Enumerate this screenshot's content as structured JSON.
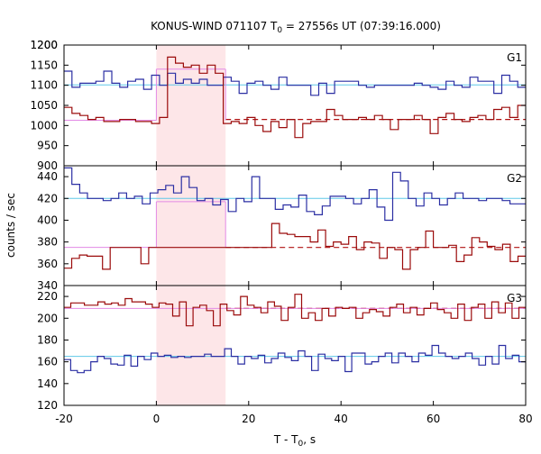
{
  "chart_data": {
    "type": "line",
    "title_main": "KONUS-WIND 071107 T",
    "title_sub": "0",
    "title_rest": " = 27556s UT (07:39:16.000)",
    "xlabel_main": "T - T",
    "xlabel_sub": "0",
    "xlabel_rest": ", s",
    "ylabel": "counts / sec",
    "xlim": [
      -20,
      80
    ],
    "xticks": [
      "-20",
      "0",
      "20",
      "40",
      "60",
      "80"
    ],
    "highlight_interval": [
      0,
      15
    ],
    "panels": [
      {
        "name": "G1",
        "ylim": [
          900,
          1200
        ],
        "yticks": [
          "900",
          "950",
          "1000",
          "1050",
          "1100",
          "1150",
          "1200"
        ],
        "bg_levels": [
          {
            "series": "blue",
            "value": 1101
          },
          {
            "series": "red",
            "value": 1015
          }
        ],
        "pulse_level": {
          "value": 1140,
          "from": 0,
          "to": 15
        },
        "pulse_base": {
          "value": 1013,
          "from": -20,
          "to": 0
        },
        "series": [
          {
            "color": "blue",
            "values": [
              1135,
              1095,
              1105,
              1105,
              1110,
              1135,
              1105,
              1095,
              1110,
              1115,
              1090,
              1125,
              1100,
              1130,
              1105,
              1115,
              1105,
              1115,
              1100,
              1100,
              1120,
              1110,
              1080,
              1105,
              1110,
              1100,
              1090,
              1120,
              1100,
              1100,
              1100,
              1075,
              1105,
              1080,
              1110,
              1110,
              1110,
              1100,
              1095,
              1100,
              1100,
              1100,
              1100,
              1100,
              1105,
              1100,
              1095,
              1090,
              1110,
              1100,
              1095,
              1120,
              1110,
              1110,
              1080,
              1125,
              1110,
              1095
            ]
          },
          {
            "color": "red",
            "values": [
              1045,
              1030,
              1025,
              1015,
              1020,
              1010,
              1010,
              1015,
              1015,
              1010,
              1010,
              1005,
              1020,
              1170,
              1155,
              1145,
              1150,
              1130,
              1150,
              1130,
              1005,
              1010,
              1005,
              1020,
              1000,
              985,
              1010,
              995,
              1015,
              970,
              1005,
              1010,
              1010,
              1040,
              1025,
              1015,
              1015,
              1020,
              1015,
              1025,
              1015,
              990,
              1015,
              1015,
              1025,
              1015,
              980,
              1020,
              1030,
              1015,
              1010,
              1020,
              1025,
              1015,
              1040,
              1045,
              1020,
              1050
            ]
          }
        ]
      },
      {
        "name": "G2",
        "ylim": [
          340,
          450
        ],
        "yticks": [
          "340",
          "360",
          "380",
          "400",
          "420",
          "440"
        ],
        "bg_levels": [
          {
            "series": "blue",
            "value": 420
          },
          {
            "series": "red",
            "value": 375
          }
        ],
        "pulse_level": {
          "value": 417,
          "from": 0,
          "to": 15
        },
        "pulse_base": {
          "value": 375,
          "from": -20,
          "to": 0
        },
        "series": [
          {
            "color": "blue",
            "values": [
              448,
              433,
              425,
              420,
              420,
              418,
              420,
              425,
              420,
              422,
              415,
              425,
              428,
              432,
              425,
              440,
              430,
              418,
              420,
              414,
              419,
              408,
              420,
              417,
              440,
              420,
              420,
              410,
              414,
              412,
              423,
              408,
              405,
              413,
              422,
              422,
              420,
              415,
              420,
              428,
              412,
              400,
              444,
              436,
              420,
              413,
              425,
              420,
              414,
              420,
              425,
              420,
              420,
              418,
              420,
              420,
              418,
              415,
              415
            ]
          },
          {
            "color": "red",
            "values": [
              356,
              365,
              368,
              367,
              367,
              355,
              375,
              375,
              375,
              375,
              360,
              375,
              375,
              375,
              375,
              375,
              375,
              375,
              375,
              375,
              375,
              375,
              375,
              375,
              375,
              375,
              375,
              397,
              388,
              387,
              385,
              385,
              380,
              391,
              376,
              380,
              378,
              385,
              373,
              380,
              379,
              365,
              375,
              373,
              355,
              373,
              375,
              390,
              375,
              375,
              377,
              362,
              368,
              384,
              380,
              376,
              373,
              378,
              362,
              367
            ]
          }
        ]
      },
      {
        "name": "G3",
        "ylim": [
          120,
          230
        ],
        "yticks": [
          "120",
          "140",
          "160",
          "180",
          "200",
          "220"
        ],
        "bg_levels": [
          {
            "series": "blue",
            "value": 165
          },
          {
            "series": "red",
            "value": 209
          }
        ],
        "pulse_level": {
          "value": 209,
          "from": 0,
          "to": 15
        },
        "pulse_base": null,
        "series": [
          {
            "color": "blue",
            "values": [
              162,
              152,
              150,
              152,
              160,
              165,
              163,
              158,
              157,
              166,
              156,
              165,
              162,
              168,
              165,
              166,
              164,
              165,
              164,
              165,
              165,
              167,
              165,
              165,
              172,
              165,
              158,
              165,
              163,
              166,
              159,
              163,
              168,
              164,
              161,
              170,
              165,
              152,
              167,
              163,
              161,
              165,
              151,
              168,
              168,
              158,
              160,
              165,
              168,
              159,
              168,
              165,
              160,
              168,
              166,
              175,
              168,
              165,
              163,
              165,
              168,
              163,
              157,
              165,
              158,
              175,
              163,
              166,
              160
            ]
          },
          {
            "color": "red",
            "values": [
              210,
              214,
              214,
              212,
              212,
              215,
              213,
              214,
              212,
              218,
              215,
              215,
              213,
              210,
              214,
              213,
              202,
              215,
              193,
              210,
              212,
              207,
              193,
              213,
              207,
              203,
              220,
              212,
              210,
              205,
              215,
              211,
              198,
              210,
              222,
              200,
              205,
              198,
              209,
              202,
              210,
              209,
              210,
              200,
              205,
              208,
              206,
              202,
              210,
              213,
              205,
              210,
              203,
              209,
              214,
              208,
              205,
              200,
              213,
              198,
              210,
              213,
              200,
              215,
              205,
              214,
              200,
              210
            ]
          }
        ]
      }
    ],
    "colors": {
      "blue": "#2b2fa3",
      "red": "#9b0b0b",
      "cyan": "#5fc8e8",
      "violet": "#e38ae5",
      "dashed_red": "#b01010",
      "highlight": "#fde6e8"
    }
  }
}
